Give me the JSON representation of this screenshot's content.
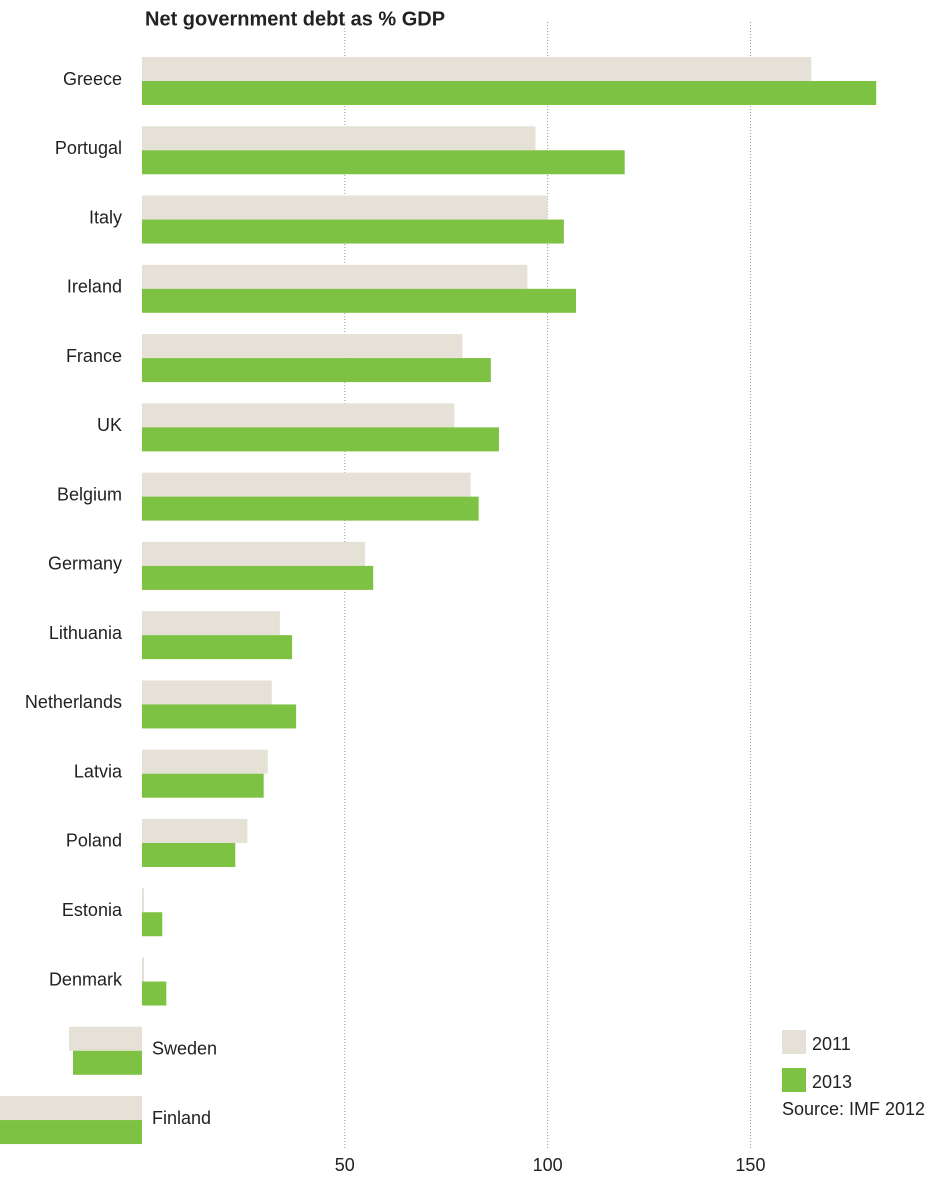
{
  "chart_data": {
    "type": "hbar",
    "title": "Net government debt as % GDP",
    "categories": [
      "Greece",
      "Portugal",
      "Italy",
      "Ireland",
      "France",
      "UK",
      "Belgium",
      "Germany",
      "Lithuania",
      "Netherlands",
      "Latvia",
      "Poland",
      "Estonia",
      "Denmark",
      "Sweden",
      "Finland"
    ],
    "series": [
      {
        "name": "2011",
        "color": "#e6e1d6",
        "values": [
          165,
          97,
          100,
          95,
          79,
          77,
          81,
          55,
          34,
          32,
          31,
          26,
          0.5,
          0.5,
          -18,
          -40
        ]
      },
      {
        "name": "2013",
        "color": "#7dc242",
        "values": [
          181,
          119,
          104,
          107,
          86,
          88,
          83,
          57,
          37,
          38,
          30,
          23,
          5,
          6,
          -17,
          -40
        ]
      }
    ],
    "xlim": [
      -35,
      195
    ],
    "xticks": [
      50,
      100,
      150
    ],
    "grid": true,
    "source": "Source: IMF 2012"
  }
}
